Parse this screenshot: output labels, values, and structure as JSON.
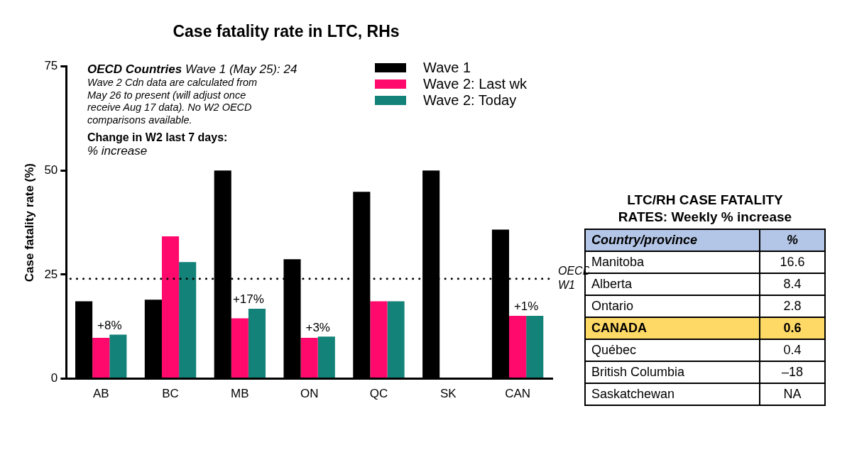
{
  "chart_data": {
    "type": "bar",
    "title": "Case fatality rate in LTC, RHs",
    "y_label": "Case fatality rate (%)",
    "categories": [
      "AB",
      "BC",
      "MB",
      "ON",
      "QC",
      "SK",
      "CAN"
    ],
    "series": [
      {
        "name": "Wave 1",
        "color": "#000000",
        "values": [
          18.6,
          19.0,
          50,
          28.7,
          44.9,
          50,
          35.8
        ]
      },
      {
        "name": "Wave 2: Last wk",
        "color": "#ff0a6c",
        "values": [
          9.8,
          34.2,
          14.5,
          9.8,
          18.6,
          null,
          15.1
        ]
      },
      {
        "name": "Wave 2: Today",
        "color": "#138278",
        "values": [
          10.6,
          28.0,
          16.8,
          10.1,
          18.6,
          null,
          15.1
        ]
      }
    ],
    "ylim": [
      0,
      75
    ],
    "yticks": [
      0,
      25,
      50,
      75
    ],
    "grid": false,
    "legend": "top-right",
    "reference_line": {
      "value": 24,
      "label": [
        "OECD",
        "W1"
      ],
      "line_style": "dotted"
    },
    "annotations": [
      {
        "category": "AB",
        "text": "+8%"
      },
      {
        "category": "MB",
        "text": "+17%"
      },
      {
        "category": "ON",
        "text": "+3%"
      },
      {
        "category": "CAN",
        "text": "+1%"
      }
    ],
    "notes": {
      "heading": [
        "OECD Countries",
        "Wave 1 (May 25): 24"
      ],
      "lines": [
        "Wave 2 Cdn data are calculated from",
        "May 26 to present (will adjust once",
        "receive Aug 17 data). No W2 OECD",
        "comparisons available."
      ],
      "change_title": "Change in W2 last 7 days:",
      "change_subtitle": "% increase"
    }
  },
  "table": {
    "title": [
      "LTC/RH CASE FATALITY",
      "RATES: Weekly % increase"
    ],
    "header": [
      "Country/province",
      "%"
    ],
    "header_color": "#b4c6e7",
    "rows": [
      {
        "cells": [
          "Manitoba",
          "16.6"
        ]
      },
      {
        "cells": [
          "Alberta",
          "8.4"
        ]
      },
      {
        "cells": [
          "Ontario",
          "2.8"
        ]
      },
      {
        "cells": [
          "CANADA",
          "0.6"
        ],
        "color": "#ffd966"
      },
      {
        "cells": [
          "Québec",
          "0.4"
        ]
      },
      {
        "cells": [
          "British Columbia",
          "–18"
        ]
      },
      {
        "cells": [
          "Saskatchewan",
          "NA"
        ]
      }
    ]
  }
}
